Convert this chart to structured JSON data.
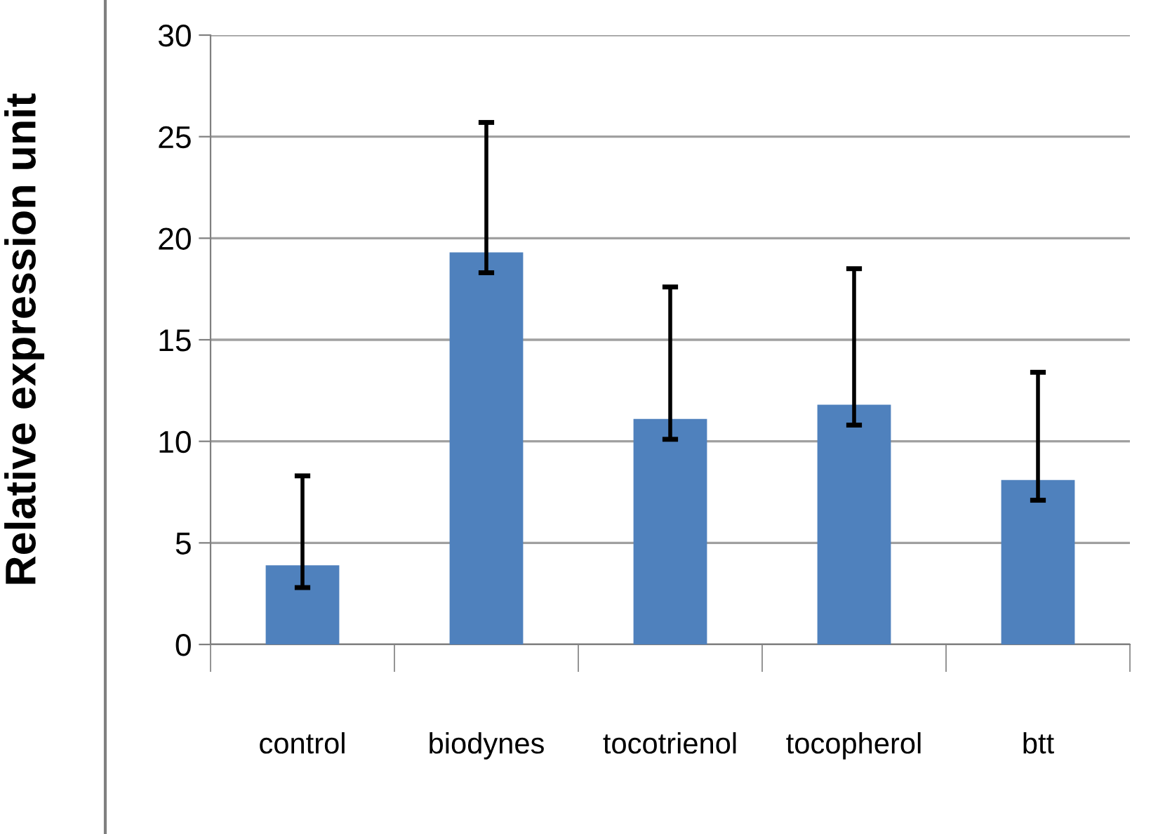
{
  "chart_data": {
    "type": "bar",
    "ylabel": "Relative expression unit",
    "categories": [
      "control",
      "biodynes",
      "tocotrienol",
      "tocopherol",
      "btt"
    ],
    "values": [
      3.9,
      19.3,
      11.1,
      11.8,
      8.1
    ],
    "errors": [
      [
        2.8,
        8.3
      ],
      [
        18.3,
        25.7
      ],
      [
        10.1,
        17.6
      ],
      [
        10.8,
        18.5
      ],
      [
        7.1,
        13.4
      ]
    ],
    "color": "#4f81bd",
    "ylim": [
      0,
      30
    ],
    "yticks": [
      0,
      5,
      10,
      15,
      20,
      25,
      30
    ],
    "grid": "y"
  }
}
